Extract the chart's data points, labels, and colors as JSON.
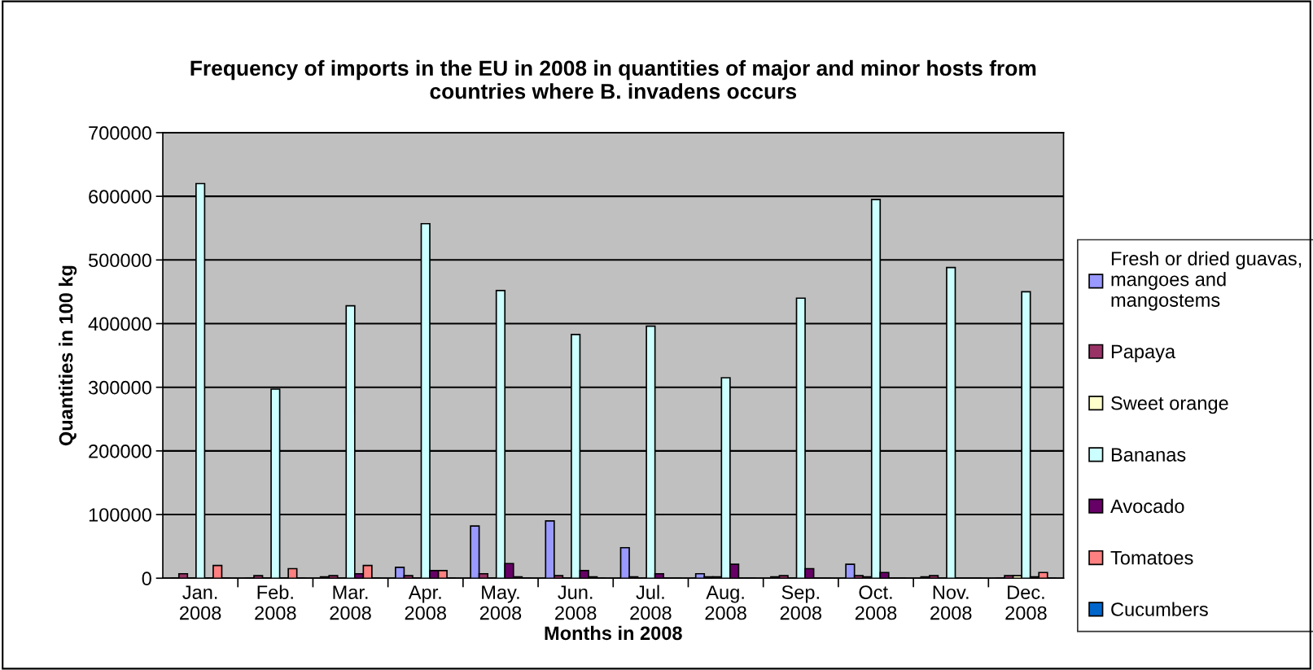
{
  "chart_data": {
    "type": "bar",
    "title": "Frequency of imports in the EU in 2008 in quantities of major and minor hosts from\ncountries where B. invadens occurs",
    "xlabel": "Months in 2008",
    "ylabel": "Quantities in 100 kg",
    "categories": [
      "Jan.\n2008",
      "Feb.\n2008",
      "Mar.\n2008",
      "Apr.\n2008",
      "May.\n2008",
      "Jun.\n2008",
      "Jul.\n2008",
      "Aug.\n2008",
      "Sep.\n2008",
      "Oct.\n2008",
      "Nov.\n2008",
      "Dec.\n2008"
    ],
    "series": [
      {
        "name": "Fresh or dried guavas,\nmangoes and\nmangostems",
        "color": "#9999ff",
        "values": [
          0,
          0,
          2000,
          17000,
          82000,
          90000,
          48000,
          7000,
          2000,
          22000,
          2000,
          0
        ]
      },
      {
        "name": "Papaya",
        "color": "#993366",
        "values": [
          7000,
          4000,
          4000,
          4000,
          7000,
          4000,
          2000,
          2000,
          4000,
          4000,
          4000,
          4000
        ]
      },
      {
        "name": "Sweet orange",
        "color": "#ffffcc",
        "values": [
          0,
          0,
          0,
          0,
          0,
          0,
          0,
          2000,
          0,
          2000,
          0,
          4000
        ]
      },
      {
        "name": "Bananas",
        "color": "#ccffff",
        "values": [
          620000,
          297000,
          428000,
          557000,
          452000,
          383000,
          396000,
          315000,
          440000,
          595000,
          488000,
          450000
        ]
      },
      {
        "name": "Avocado",
        "color": "#660066",
        "values": [
          0,
          0,
          7000,
          12000,
          23000,
          12000,
          7000,
          22000,
          15000,
          9000,
          0,
          2000
        ]
      },
      {
        "name": "Tomatoes",
        "color": "#ff8080",
        "values": [
          20000,
          15000,
          20000,
          12000,
          2000,
          2000,
          0,
          0,
          0,
          0,
          0,
          9000
        ]
      },
      {
        "name": "Cucumbers",
        "color": "#0066cc",
        "values": [
          0,
          0,
          0,
          0,
          0,
          0,
          0,
          0,
          0,
          0,
          0,
          0
        ]
      }
    ],
    "ylim": [
      0,
      700000
    ],
    "yticks": [
      0,
      100000,
      200000,
      300000,
      400000,
      500000,
      600000,
      700000
    ],
    "grid": "y",
    "legend": "right"
  }
}
